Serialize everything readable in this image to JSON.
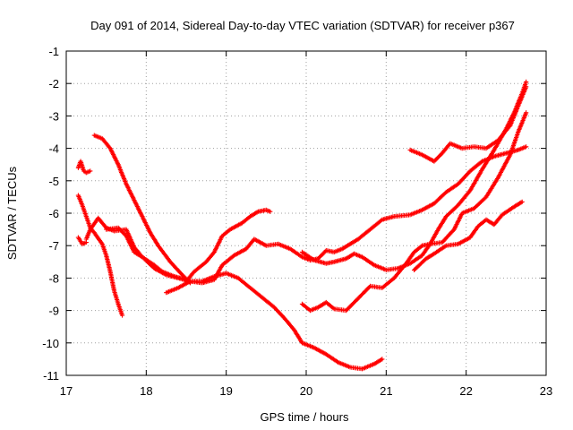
{
  "chart_data": {
    "type": "scatter",
    "title": "Day 091 of 2014, Sidereal Day-to-day VTEC variation (SDTVAR) for receiver p367",
    "xlabel": "GPS time / hours",
    "ylabel": "SDTVAR / TECUs",
    "xlim": [
      17,
      23
    ],
    "ylim": [
      -11,
      -1
    ],
    "xticks": [
      "17",
      "18",
      "19",
      "20",
      "21",
      "22",
      "23"
    ],
    "yticks": [
      "-1",
      "-2",
      "-3",
      "-4",
      "-5",
      "-6",
      "-7",
      "-8",
      "-9",
      "-10",
      "-11"
    ],
    "grid": true,
    "marker": "+",
    "color": "#ff0000",
    "series": [
      {
        "name": "trace-1",
        "points": [
          [
            17.35,
            -3.6
          ],
          [
            17.45,
            -3.7
          ],
          [
            17.55,
            -4.0
          ],
          [
            17.65,
            -4.5
          ],
          [
            17.75,
            -5.1
          ],
          [
            17.85,
            -5.6
          ],
          [
            17.95,
            -6.1
          ],
          [
            18.05,
            -6.6
          ],
          [
            18.15,
            -7.0
          ],
          [
            18.3,
            -7.5
          ],
          [
            18.45,
            -7.9
          ],
          [
            18.55,
            -8.15
          ]
        ]
      },
      {
        "name": "trace-2",
        "points": [
          [
            18.5,
            -8.1
          ],
          [
            18.6,
            -7.8
          ],
          [
            18.75,
            -7.5
          ],
          [
            18.85,
            -7.2
          ],
          [
            18.95,
            -6.7
          ],
          [
            19.05,
            -6.5
          ],
          [
            19.2,
            -6.3
          ],
          [
            19.3,
            -6.1
          ],
          [
            19.4,
            -5.95
          ],
          [
            19.5,
            -5.9
          ],
          [
            19.55,
            -5.95
          ]
        ]
      },
      {
        "name": "trace-3",
        "points": [
          [
            18.25,
            -8.45
          ],
          [
            18.4,
            -8.3
          ],
          [
            18.55,
            -8.1
          ],
          [
            18.7,
            -8.15
          ],
          [
            18.85,
            -8.05
          ],
          [
            18.95,
            -7.6
          ],
          [
            19.1,
            -7.3
          ],
          [
            19.25,
            -7.1
          ],
          [
            19.35,
            -6.8
          ],
          [
            19.5,
            -7.0
          ],
          [
            19.65,
            -6.95
          ],
          [
            19.8,
            -7.1
          ],
          [
            19.95,
            -7.35
          ],
          [
            20.05,
            -7.45
          ],
          [
            20.15,
            -7.4
          ],
          [
            20.25,
            -7.15
          ],
          [
            20.35,
            -7.2
          ],
          [
            20.45,
            -7.1
          ],
          [
            20.55,
            -6.95
          ],
          [
            20.65,
            -6.8
          ],
          [
            20.8,
            -6.5
          ],
          [
            20.95,
            -6.2
          ],
          [
            21.1,
            -6.1
          ],
          [
            21.3,
            -6.05
          ],
          [
            21.45,
            -5.9
          ],
          [
            21.6,
            -5.7
          ],
          [
            21.75,
            -5.35
          ],
          [
            21.9,
            -5.1
          ],
          [
            22.05,
            -4.7
          ],
          [
            22.2,
            -4.4
          ],
          [
            22.35,
            -4.25
          ],
          [
            22.5,
            -4.15
          ],
          [
            22.65,
            -4.05
          ],
          [
            22.75,
            -3.95
          ]
        ]
      },
      {
        "name": "trace-4",
        "points": [
          [
            17.5,
            -6.5
          ],
          [
            17.65,
            -6.45
          ],
          [
            17.75,
            -6.7
          ],
          [
            17.85,
            -7.2
          ],
          [
            17.95,
            -7.35
          ],
          [
            18.1,
            -7.7
          ],
          [
            18.25,
            -7.9
          ],
          [
            18.4,
            -8.0
          ],
          [
            18.55,
            -8.1
          ],
          [
            18.7,
            -8.1
          ],
          [
            18.85,
            -7.95
          ],
          [
            19.0,
            -7.85
          ],
          [
            19.15,
            -8.0
          ],
          [
            19.3,
            -8.3
          ],
          [
            19.45,
            -8.6
          ],
          [
            19.6,
            -8.9
          ],
          [
            19.75,
            -9.3
          ],
          [
            19.85,
            -9.6
          ],
          [
            19.95,
            -10.0
          ],
          [
            20.1,
            -10.15
          ],
          [
            20.25,
            -10.35
          ],
          [
            20.4,
            -10.6
          ],
          [
            20.55,
            -10.75
          ],
          [
            20.7,
            -10.8
          ],
          [
            20.85,
            -10.65
          ],
          [
            20.95,
            -10.5
          ]
        ]
      },
      {
        "name": "trace-5",
        "points": [
          [
            17.25,
            -6.8
          ],
          [
            17.3,
            -6.5
          ],
          [
            17.4,
            -6.15
          ],
          [
            17.5,
            -6.45
          ],
          [
            17.6,
            -6.55
          ],
          [
            17.75,
            -6.5
          ],
          [
            17.85,
            -7.05
          ],
          [
            17.95,
            -7.35
          ],
          [
            18.1,
            -7.6
          ],
          [
            18.2,
            -7.8
          ],
          [
            18.35,
            -7.95
          ],
          [
            18.5,
            -8.05
          ]
        ]
      },
      {
        "name": "trace-6",
        "points": [
          [
            19.95,
            -7.2
          ],
          [
            20.1,
            -7.45
          ],
          [
            20.25,
            -7.55
          ],
          [
            20.35,
            -7.5
          ],
          [
            20.5,
            -7.4
          ],
          [
            20.6,
            -7.25
          ],
          [
            20.7,
            -7.35
          ],
          [
            20.85,
            -7.6
          ],
          [
            21.0,
            -7.75
          ],
          [
            21.15,
            -7.7
          ],
          [
            21.3,
            -7.55
          ],
          [
            21.45,
            -7.3
          ],
          [
            21.55,
            -6.95
          ],
          [
            21.65,
            -6.5
          ],
          [
            21.75,
            -6.1
          ],
          [
            21.9,
            -5.75
          ],
          [
            22.05,
            -5.3
          ],
          [
            22.2,
            -4.65
          ],
          [
            22.35,
            -4.05
          ],
          [
            22.5,
            -3.4
          ],
          [
            22.6,
            -2.9
          ],
          [
            22.7,
            -2.3
          ],
          [
            22.75,
            -1.95
          ]
        ]
      },
      {
        "name": "trace-7",
        "points": [
          [
            19.95,
            -8.8
          ],
          [
            20.05,
            -9.0
          ],
          [
            20.15,
            -8.9
          ],
          [
            20.25,
            -8.75
          ],
          [
            20.35,
            -8.95
          ],
          [
            20.5,
            -9.0
          ],
          [
            20.6,
            -8.75
          ],
          [
            20.7,
            -8.5
          ],
          [
            20.8,
            -8.25
          ],
          [
            20.95,
            -8.3
          ],
          [
            21.1,
            -8.0
          ],
          [
            21.25,
            -7.55
          ],
          [
            21.35,
            -7.2
          ],
          [
            21.45,
            -7.0
          ],
          [
            21.55,
            -6.95
          ],
          [
            21.7,
            -6.9
          ],
          [
            21.85,
            -6.5
          ],
          [
            21.95,
            -6.0
          ],
          [
            22.1,
            -5.85
          ],
          [
            22.25,
            -5.5
          ],
          [
            22.4,
            -4.9
          ],
          [
            22.55,
            -4.2
          ],
          [
            22.65,
            -3.5
          ],
          [
            22.75,
            -2.9
          ]
        ]
      },
      {
        "name": "trace-8",
        "points": [
          [
            21.3,
            -4.05
          ],
          [
            21.45,
            -4.2
          ],
          [
            21.6,
            -4.4
          ],
          [
            21.7,
            -4.15
          ],
          [
            21.8,
            -3.85
          ],
          [
            21.95,
            -4.0
          ],
          [
            22.1,
            -3.95
          ],
          [
            22.25,
            -4.0
          ],
          [
            22.4,
            -3.75
          ],
          [
            22.55,
            -3.3
          ],
          [
            22.65,
            -2.7
          ],
          [
            22.75,
            -2.1
          ]
        ]
      },
      {
        "name": "trace-9",
        "points": [
          [
            21.35,
            -7.75
          ],
          [
            21.5,
            -7.4
          ],
          [
            21.6,
            -7.25
          ],
          [
            21.75,
            -7.0
          ],
          [
            21.9,
            -6.95
          ],
          [
            22.05,
            -6.75
          ],
          [
            22.15,
            -6.4
          ],
          [
            22.25,
            -6.2
          ],
          [
            22.35,
            -6.35
          ],
          [
            22.45,
            -6.05
          ],
          [
            22.6,
            -5.8
          ],
          [
            22.7,
            -5.65
          ]
        ]
      },
      {
        "name": "trace-10",
        "points": [
          [
            17.15,
            -4.6
          ],
          [
            17.18,
            -4.4
          ],
          [
            17.22,
            -4.7
          ],
          [
            17.25,
            -4.75
          ],
          [
            17.3,
            -4.7
          ]
        ]
      },
      {
        "name": "trace-11",
        "points": [
          [
            17.15,
            -5.45
          ],
          [
            17.2,
            -5.75
          ],
          [
            17.25,
            -6.1
          ],
          [
            17.3,
            -6.45
          ],
          [
            17.35,
            -6.6
          ],
          [
            17.45,
            -6.95
          ],
          [
            17.5,
            -7.3
          ],
          [
            17.55,
            -7.8
          ],
          [
            17.6,
            -8.4
          ],
          [
            17.65,
            -8.8
          ],
          [
            17.7,
            -9.15
          ]
        ]
      },
      {
        "name": "trace-12",
        "points": [
          [
            17.15,
            -6.75
          ],
          [
            17.2,
            -6.95
          ],
          [
            17.25,
            -6.9
          ]
        ]
      }
    ]
  }
}
